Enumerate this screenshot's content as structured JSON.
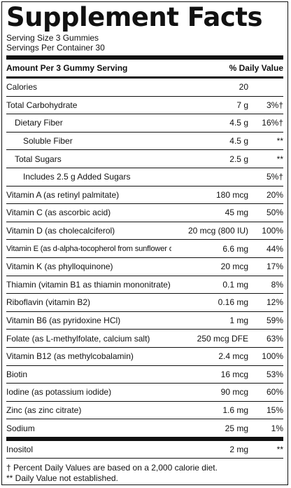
{
  "title": "Supplement Facts",
  "serving_size": "Serving Size 3 Gummies",
  "servings_per_container": "Servings Per Container 30",
  "header": {
    "amount": "Amount Per 3 Gummy Serving",
    "dv": "% Daily Value"
  },
  "rows": [
    {
      "name": "Calories",
      "amount": "20",
      "dv": ""
    },
    {
      "name": "Total Carbohydrate",
      "amount": "7 g",
      "dv": "3%†"
    },
    {
      "name": "Dietary Fiber",
      "amount": "4.5 g",
      "dv": "16%†"
    },
    {
      "name": "Soluble Fiber",
      "amount": "4.5 g",
      "dv": "**"
    },
    {
      "name": "Total Sugars",
      "amount": "2.5 g",
      "dv": "**"
    },
    {
      "name": "Includes 2.5 g Added Sugars",
      "amount": "",
      "dv": "5%†"
    },
    {
      "name": "Vitamin A (as retinyl palmitate)",
      "amount": "180 mcg",
      "dv": "20%"
    },
    {
      "name": "Vitamin C (as ascorbic acid)",
      "amount": "45 mg",
      "dv": "50%"
    },
    {
      "name": "Vitamin D (as cholecalciferol)",
      "amount": "20 mcg (800 IU)",
      "dv": "100%"
    },
    {
      "name": "Vitamin E (as d-alpha-tocopherol from sunflower oil)",
      "amount": "6.6 mg",
      "dv": "44%"
    },
    {
      "name": "Vitamin K (as phylloquinone)",
      "amount": "20 mcg",
      "dv": "17%"
    },
    {
      "name": "Thiamin (vitamin B1 as thiamin mononitrate)",
      "amount": "0.1 mg",
      "dv": "8%"
    },
    {
      "name": "Riboflavin (vitamin B2)",
      "amount": "0.16 mg",
      "dv": "12%"
    },
    {
      "name": "Vitamin B6 (as pyridoxine HCl)",
      "amount": "1 mg",
      "dv": "59%"
    },
    {
      "name": "Folate (as L-methylfolate, calcium salt)",
      "amount": "250 mcg DFE",
      "dv": "63%"
    },
    {
      "name": "Vitamin B12 (as methylcobalamin)",
      "amount": "2.4 mcg",
      "dv": "100%"
    },
    {
      "name": "Biotin",
      "amount": "16 mcg",
      "dv": "53%"
    },
    {
      "name": "Iodine (as potassium iodide)",
      "amount": "90 mcg",
      "dv": "60%"
    },
    {
      "name": "Zinc (as zinc citrate)",
      "amount": "1.6 mg",
      "dv": "15%"
    },
    {
      "name": "Sodium",
      "amount": "25 mg",
      "dv": "1%"
    },
    {
      "name": "Inositol",
      "amount": "2 mg",
      "dv": "**"
    }
  ],
  "footnotes": [
    "† Percent Daily Values are based on a 2,000 calorie diet.",
    "** Daily Value not established."
  ]
}
